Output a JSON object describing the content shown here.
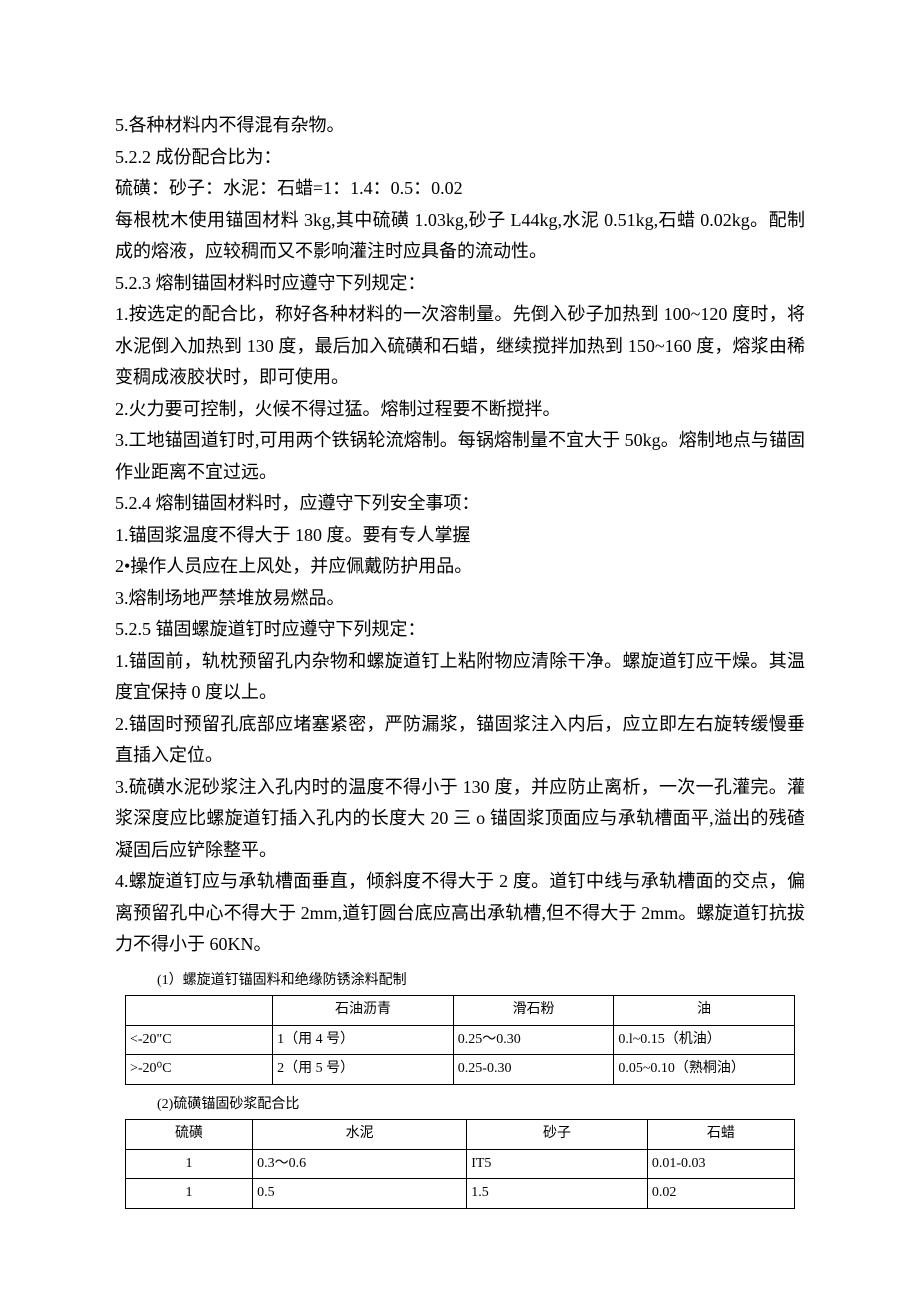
{
  "paragraphs": {
    "p1": "5.各种材料内不得混有杂物。",
    "p2": "5.2.2 成份配合比为：",
    "p3": "硫磺：砂子：水泥：石蜡=1：1.4：0.5：0.02",
    "p4": "每根枕木使用锚固材料 3kg,其中硫磺 1.03kg,砂子 L44kg,水泥 0.51kg,石蜡 0.02kg。配制成的熔液，应较稠而又不影响灌注时应具备的流动性。",
    "p5": "5.2.3 熔制锚固材料时应遵守下列规定：",
    "p6": "1.按选定的配合比，称好各种材料的一次溶制量。先倒入砂子加热到 100~120 度时，将水泥倒入加热到 130 度，最后加入硫磺和石蜡，继续搅拌加热到 150~160 度，熔浆由稀变稠成液胶状时，即可使用。",
    "p7": "2.火力要可控制，火候不得过猛。熔制过程要不断搅拌。",
    "p8": "3.工地锚固道钉时,可用两个铁锅轮流熔制。每锅熔制量不宜大于 50kg。熔制地点与锚固作业距离不宜过远。",
    "p9": "5.2.4 熔制锚固材料时，应遵守下列安全事项：",
    "p10": "1.锚固浆温度不得大于 180 度。要有专人掌握",
    "p11": "2•操作人员应在上风处，并应佩戴防护用品。",
    "p12": "3.熔制场地严禁堆放易燃品。",
    "p13": "5.2.5 锚固螺旋道钉时应遵守下列规定：",
    "p14": "1.锚固前，轨枕预留孔内杂物和螺旋道钉上粘附物应清除干净。螺旋道钉应干燥。其温度宜保持 0 度以上。",
    "p15": "2.锚固时预留孔底部应堵塞紧密，严防漏浆，锚固浆注入内后，应立即左右旋转缓慢垂直插入定位。",
    "p16": "3.硫磺水泥砂浆注入孔内时的温度不得小于 130 度，并应防止离析，一次一孔灌完。灌浆深度应比螺旋道钉插入孔内的长度大 20 三 o 锚固浆顶面应与承轨槽面平,溢出的残碴凝固后应铲除整平。",
    "p17": "4.螺旋道钉应与承轨槽面垂直，倾斜度不得大于 2 度。道钉中线与承轨槽面的交点，偏离预留孔中心不得大于 2mm,道钉圆台底应高出承轨槽,但不得大于 2mm。螺旋道钉抗拔力不得小于 60KN。"
  },
  "table1": {
    "caption": "(1）螺旋道钉锚固料和绝缘防锈涂料配制",
    "headers": [
      "",
      "石油沥青",
      "滑石粉",
      "油"
    ],
    "rows": [
      [
        "<-20\"C",
        "1（用 4 号）",
        "0.25～0.30",
        "0.l~0.15（机油）"
      ],
      [
        ">-20⁰C",
        "2（用 5 号）",
        "0.25-0.30",
        "0.05~0.10（熟桐油）"
      ]
    ],
    "col_widths": [
      "22%",
      "27%",
      "24%",
      "27%"
    ]
  },
  "table2": {
    "caption": "(2)硫磺锚固砂浆配合比",
    "headers": [
      "硫磺",
      "水泥",
      "砂子",
      "石蜡"
    ],
    "rows": [
      [
        "1",
        "0.3～0.6",
        "IT5",
        "0.01-0.03"
      ],
      [
        "1",
        "0.5",
        "1.5",
        "0.02"
      ]
    ],
    "col_widths": [
      "19%",
      "32%",
      "27%",
      "22%"
    ]
  }
}
